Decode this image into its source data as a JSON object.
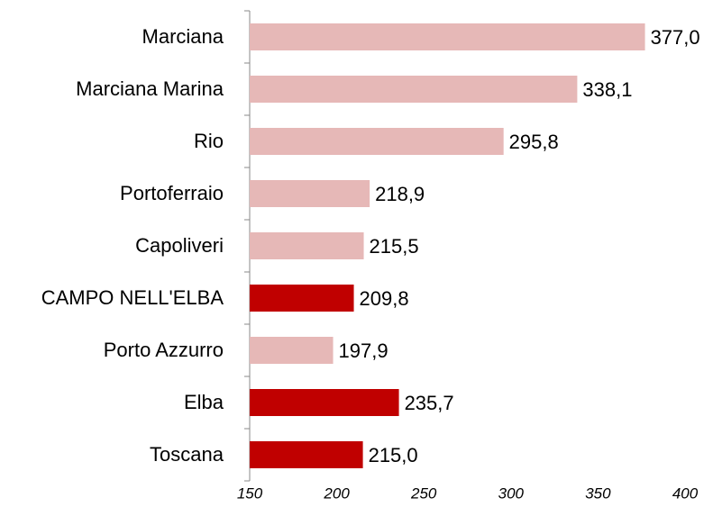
{
  "chart_data": {
    "type": "bar",
    "orientation": "horizontal",
    "categories": [
      "Marciana",
      "Marciana Marina",
      "Rio",
      "Portoferraio",
      "Capoliveri",
      "CAMPO NELL'ELBA",
      "Porto Azzurro",
      "Elba",
      "Toscana"
    ],
    "values": [
      377.0,
      338.1,
      295.8,
      218.9,
      215.5,
      209.8,
      197.9,
      235.7,
      215.0
    ],
    "value_labels": [
      "377,0",
      "338,1",
      "295,8",
      "218,9",
      "215,5",
      "209,8",
      "197,9",
      "235,7",
      "215,0"
    ],
    "colors": [
      "#e6b8b7",
      "#e6b8b7",
      "#e6b8b7",
      "#e6b8b7",
      "#e6b8b7",
      "#c00000",
      "#e6b8b7",
      "#c00000",
      "#c00000"
    ],
    "xlim": [
      150,
      400
    ],
    "xticks": [
      150,
      200,
      250,
      300,
      350,
      400
    ],
    "grid": false
  }
}
